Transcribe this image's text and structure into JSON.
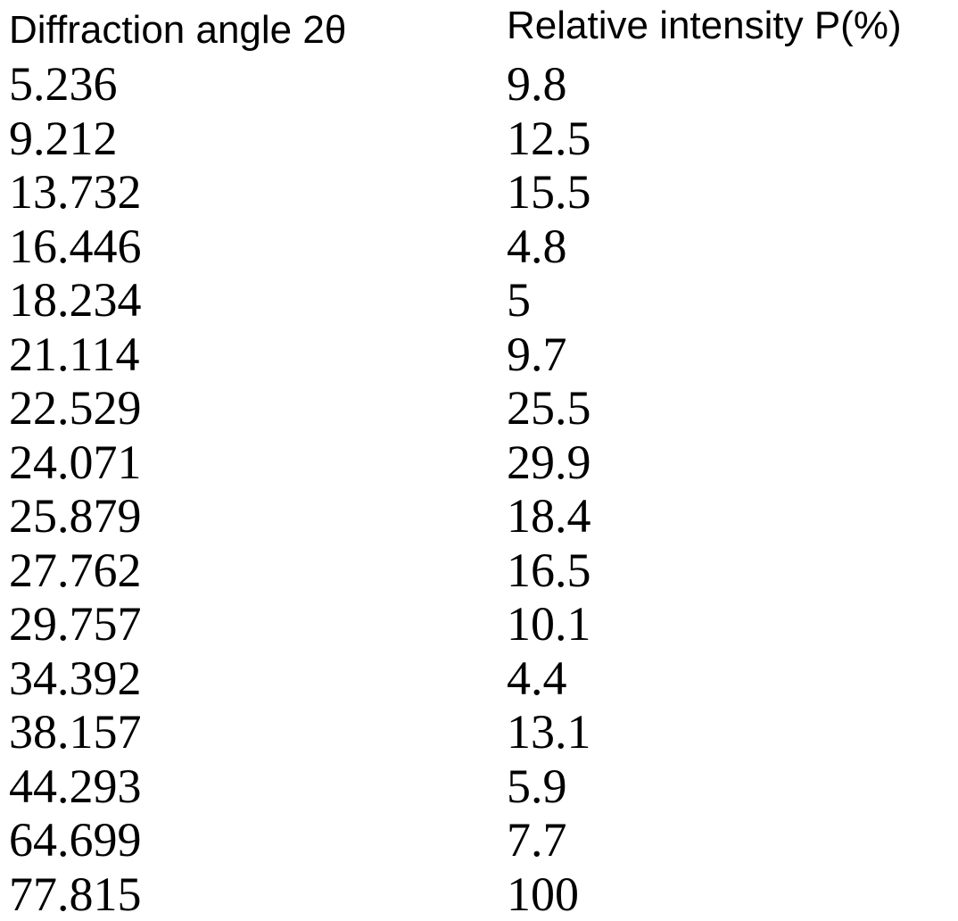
{
  "colors": {
    "background": "#ffffff",
    "text": "#000000"
  },
  "table": {
    "headers": [
      "Diffraction angle 2θ",
      "Relative intensity P(%)"
    ],
    "rows": [
      {
        "angle": "5.236",
        "intensity": "9.8"
      },
      {
        "angle": "9.212",
        "intensity": "12.5"
      },
      {
        "angle": "13.732",
        "intensity": "15.5"
      },
      {
        "angle": "16.446",
        "intensity": "4.8"
      },
      {
        "angle": "18.234",
        "intensity": "5"
      },
      {
        "angle": "21.114",
        "intensity": "9.7"
      },
      {
        "angle": "22.529",
        "intensity": "25.5"
      },
      {
        "angle": "24.071",
        "intensity": "29.9"
      },
      {
        "angle": "25.879",
        "intensity": "18.4"
      },
      {
        "angle": "27.762",
        "intensity": "16.5"
      },
      {
        "angle": "29.757",
        "intensity": "10.1"
      },
      {
        "angle": "34.392",
        "intensity": "4.4"
      },
      {
        "angle": "38.157",
        "intensity": "13.1"
      },
      {
        "angle": "44.293",
        "intensity": "5.9"
      },
      {
        "angle": "64.699",
        "intensity": "7.7"
      },
      {
        "angle": "77.815",
        "intensity": "100"
      }
    ]
  }
}
